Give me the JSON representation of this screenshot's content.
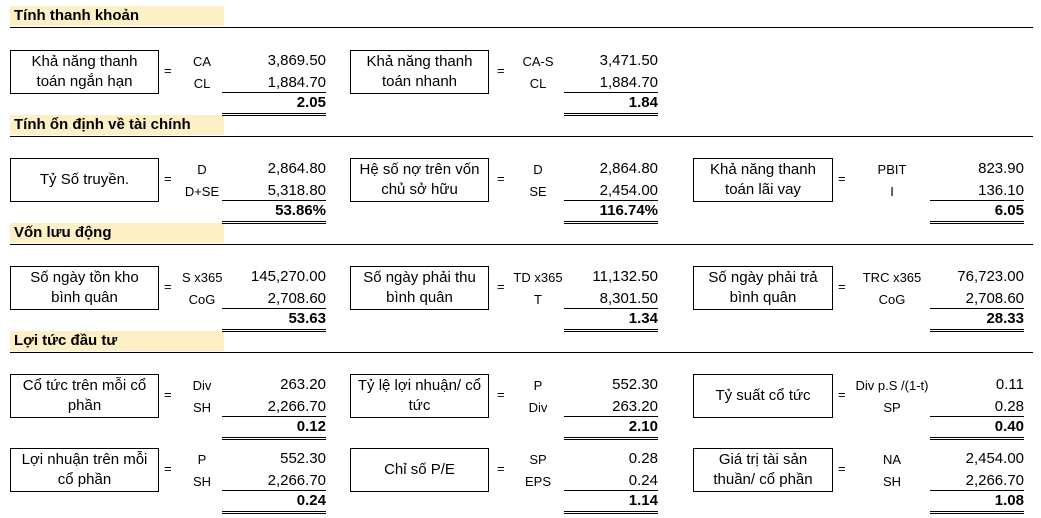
{
  "sections": [
    {
      "title": "Tính thanh khoản"
    },
    {
      "title": "Tính ổn định về tài chính"
    },
    {
      "title": "Vốn lưu động"
    },
    {
      "title": "Lợi tức đầu tư"
    }
  ],
  "ratios": [
    {
      "label": "Khả năng thanh toán ngắn hạn",
      "num_sym": "CA",
      "den_sym": "CL",
      "num_val": "3,869.50",
      "den_val": "1,884.70",
      "result": "2.05"
    },
    {
      "label": "Khả năng thanh toán nhanh",
      "num_sym": "CA-S",
      "den_sym": "CL",
      "num_val": "3,471.50",
      "den_val": "1,884.70",
      "result": "1.84"
    },
    {
      "label": "Tỷ Số truyền.",
      "num_sym": "D",
      "den_sym": "D+SE",
      "num_val": "2,864.80",
      "den_val": "5,318.80",
      "result": "53.86%"
    },
    {
      "label": "Hệ số nợ trên vốn chủ sở hữu",
      "num_sym": "D",
      "den_sym": "SE",
      "num_val": "2,864.80",
      "den_val": "2,454.00",
      "result": "116.74%"
    },
    {
      "label": "Khả năng thanh toán lãi vay",
      "num_sym": "PBIT",
      "den_sym": "I",
      "num_val": "823.90",
      "den_val": "136.10",
      "result": "6.05"
    },
    {
      "label": "Số ngày tồn kho bình quân",
      "num_sym": "S x365",
      "den_sym": "CoG",
      "num_val": "145,270.00",
      "den_val": "2,708.60",
      "result": "53.63"
    },
    {
      "label": "Số ngày phải thu bình quân",
      "num_sym": "TD x365",
      "den_sym": "T",
      "num_val": "11,132.50",
      "den_val": "8,301.50",
      "result": "1.34"
    },
    {
      "label": "Số ngày phải trả bình quân",
      "num_sym": "TRC x365",
      "den_sym": "CoG",
      "num_val": "76,723.00",
      "den_val": "2,708.60",
      "result": "28.33"
    },
    {
      "label": "Cổ tức trên mỗi cổ phần",
      "num_sym": "Div",
      "den_sym": "SH",
      "num_val": "263.20",
      "den_val": "2,266.70",
      "result": "0.12"
    },
    {
      "label": "Tỷ lệ lợi nhuận/ cổ tức",
      "num_sym": "P",
      "den_sym": "Div",
      "num_val": "552.30",
      "den_val": "263.20",
      "result": "2.10"
    },
    {
      "label": "Tỷ suất cổ tức",
      "num_sym": "Div p.S /(1-t)",
      "den_sym": "SP",
      "num_val": "0.11",
      "den_val": "0.28",
      "result": "0.40"
    },
    {
      "label": "Lợi nhuận trên mỗi cổ phần",
      "num_sym": "P",
      "den_sym": "SH",
      "num_val": "552.30",
      "den_val": "2,266.70",
      "result": "0.24"
    },
    {
      "label": "Chỉ số P/E",
      "num_sym": "SP",
      "den_sym": "EPS",
      "num_val": "0.28",
      "den_val": "0.24",
      "result": "1.14"
    },
    {
      "label": "Giá trị tài sản thuần/ cổ phần",
      "num_sym": "NA",
      "den_sym": "SH",
      "num_val": "2,454.00",
      "den_val": "2,266.70",
      "result": "1.08"
    }
  ],
  "equals_sign": "="
}
